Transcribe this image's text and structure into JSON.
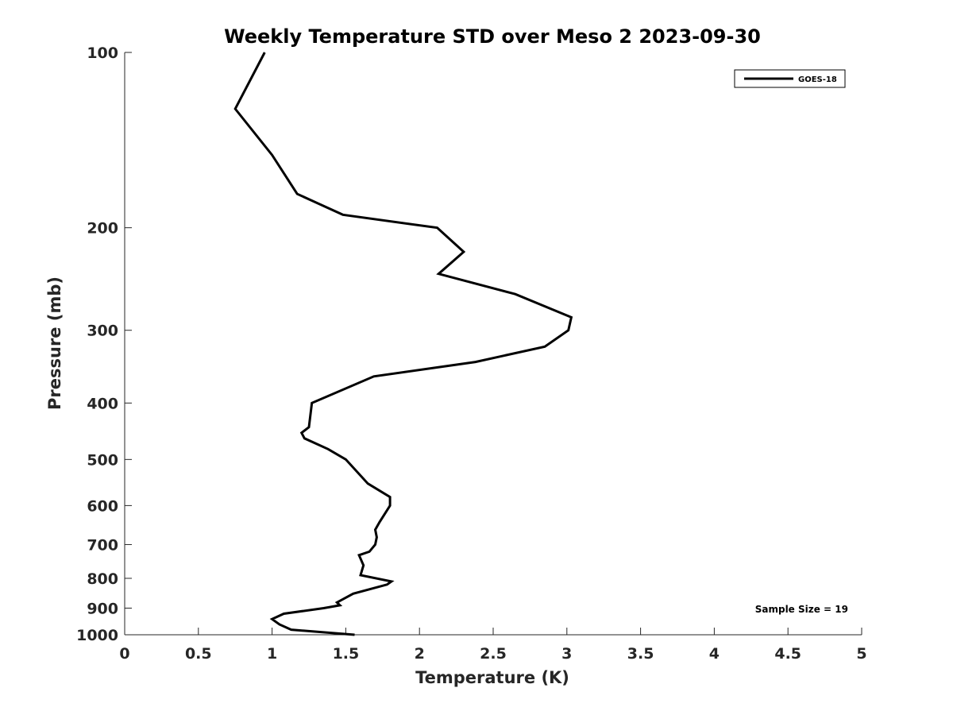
{
  "chart_data": {
    "type": "line",
    "title": "Weekly Temperature STD over Meso 2 2023-09-30",
    "xlabel": "Temperature (K)",
    "ylabel": "Pressure (mb)",
    "xlim": [
      0,
      5
    ],
    "ylim": [
      100,
      1000
    ],
    "y_scale": "log",
    "y_reversed": true,
    "grid": false,
    "legend_position": "top-right",
    "x_ticks": [
      "0",
      "0.5",
      "1",
      "1.5",
      "2",
      "2.5",
      "3",
      "3.5",
      "4",
      "4.5",
      "5"
    ],
    "x_tick_values": [
      0,
      0.5,
      1,
      1.5,
      2,
      2.5,
      3,
      3.5,
      4,
      4.5,
      5
    ],
    "y_ticks": [
      "100",
      "200",
      "300",
      "400",
      "500",
      "600",
      "700",
      "800",
      "900",
      "1000"
    ],
    "y_tick_values": [
      100,
      200,
      300,
      400,
      500,
      600,
      700,
      800,
      900,
      1000
    ],
    "series": [
      {
        "name": "GOES-18",
        "color": "#000000",
        "points": [
          [
            0.95,
            100
          ],
          [
            0.75,
            125
          ],
          [
            1.0,
            150
          ],
          [
            1.17,
            175
          ],
          [
            1.48,
            190
          ],
          [
            2.12,
            200
          ],
          [
            2.3,
            220
          ],
          [
            2.13,
            240
          ],
          [
            2.65,
            260
          ],
          [
            3.03,
            285
          ],
          [
            3.01,
            300
          ],
          [
            2.85,
            320
          ],
          [
            2.38,
            340
          ],
          [
            1.69,
            360
          ],
          [
            1.27,
            400
          ],
          [
            1.25,
            440
          ],
          [
            1.2,
            450
          ],
          [
            1.22,
            460
          ],
          [
            1.38,
            480
          ],
          [
            1.5,
            500
          ],
          [
            1.65,
            550
          ],
          [
            1.8,
            580
          ],
          [
            1.8,
            600
          ],
          [
            1.73,
            640
          ],
          [
            1.7,
            660
          ],
          [
            1.71,
            680
          ],
          [
            1.7,
            700
          ],
          [
            1.66,
            720
          ],
          [
            1.59,
            730
          ],
          [
            1.62,
            760
          ],
          [
            1.6,
            790
          ],
          [
            1.81,
            810
          ],
          [
            1.78,
            820
          ],
          [
            1.55,
            850
          ],
          [
            1.44,
            880
          ],
          [
            1.46,
            890
          ],
          [
            1.35,
            900
          ],
          [
            1.08,
            920
          ],
          [
            1.0,
            940
          ],
          [
            1.05,
            960
          ],
          [
            1.13,
            980
          ],
          [
            1.56,
            1000
          ]
        ]
      }
    ],
    "annotation": "Sample Size = 19"
  }
}
